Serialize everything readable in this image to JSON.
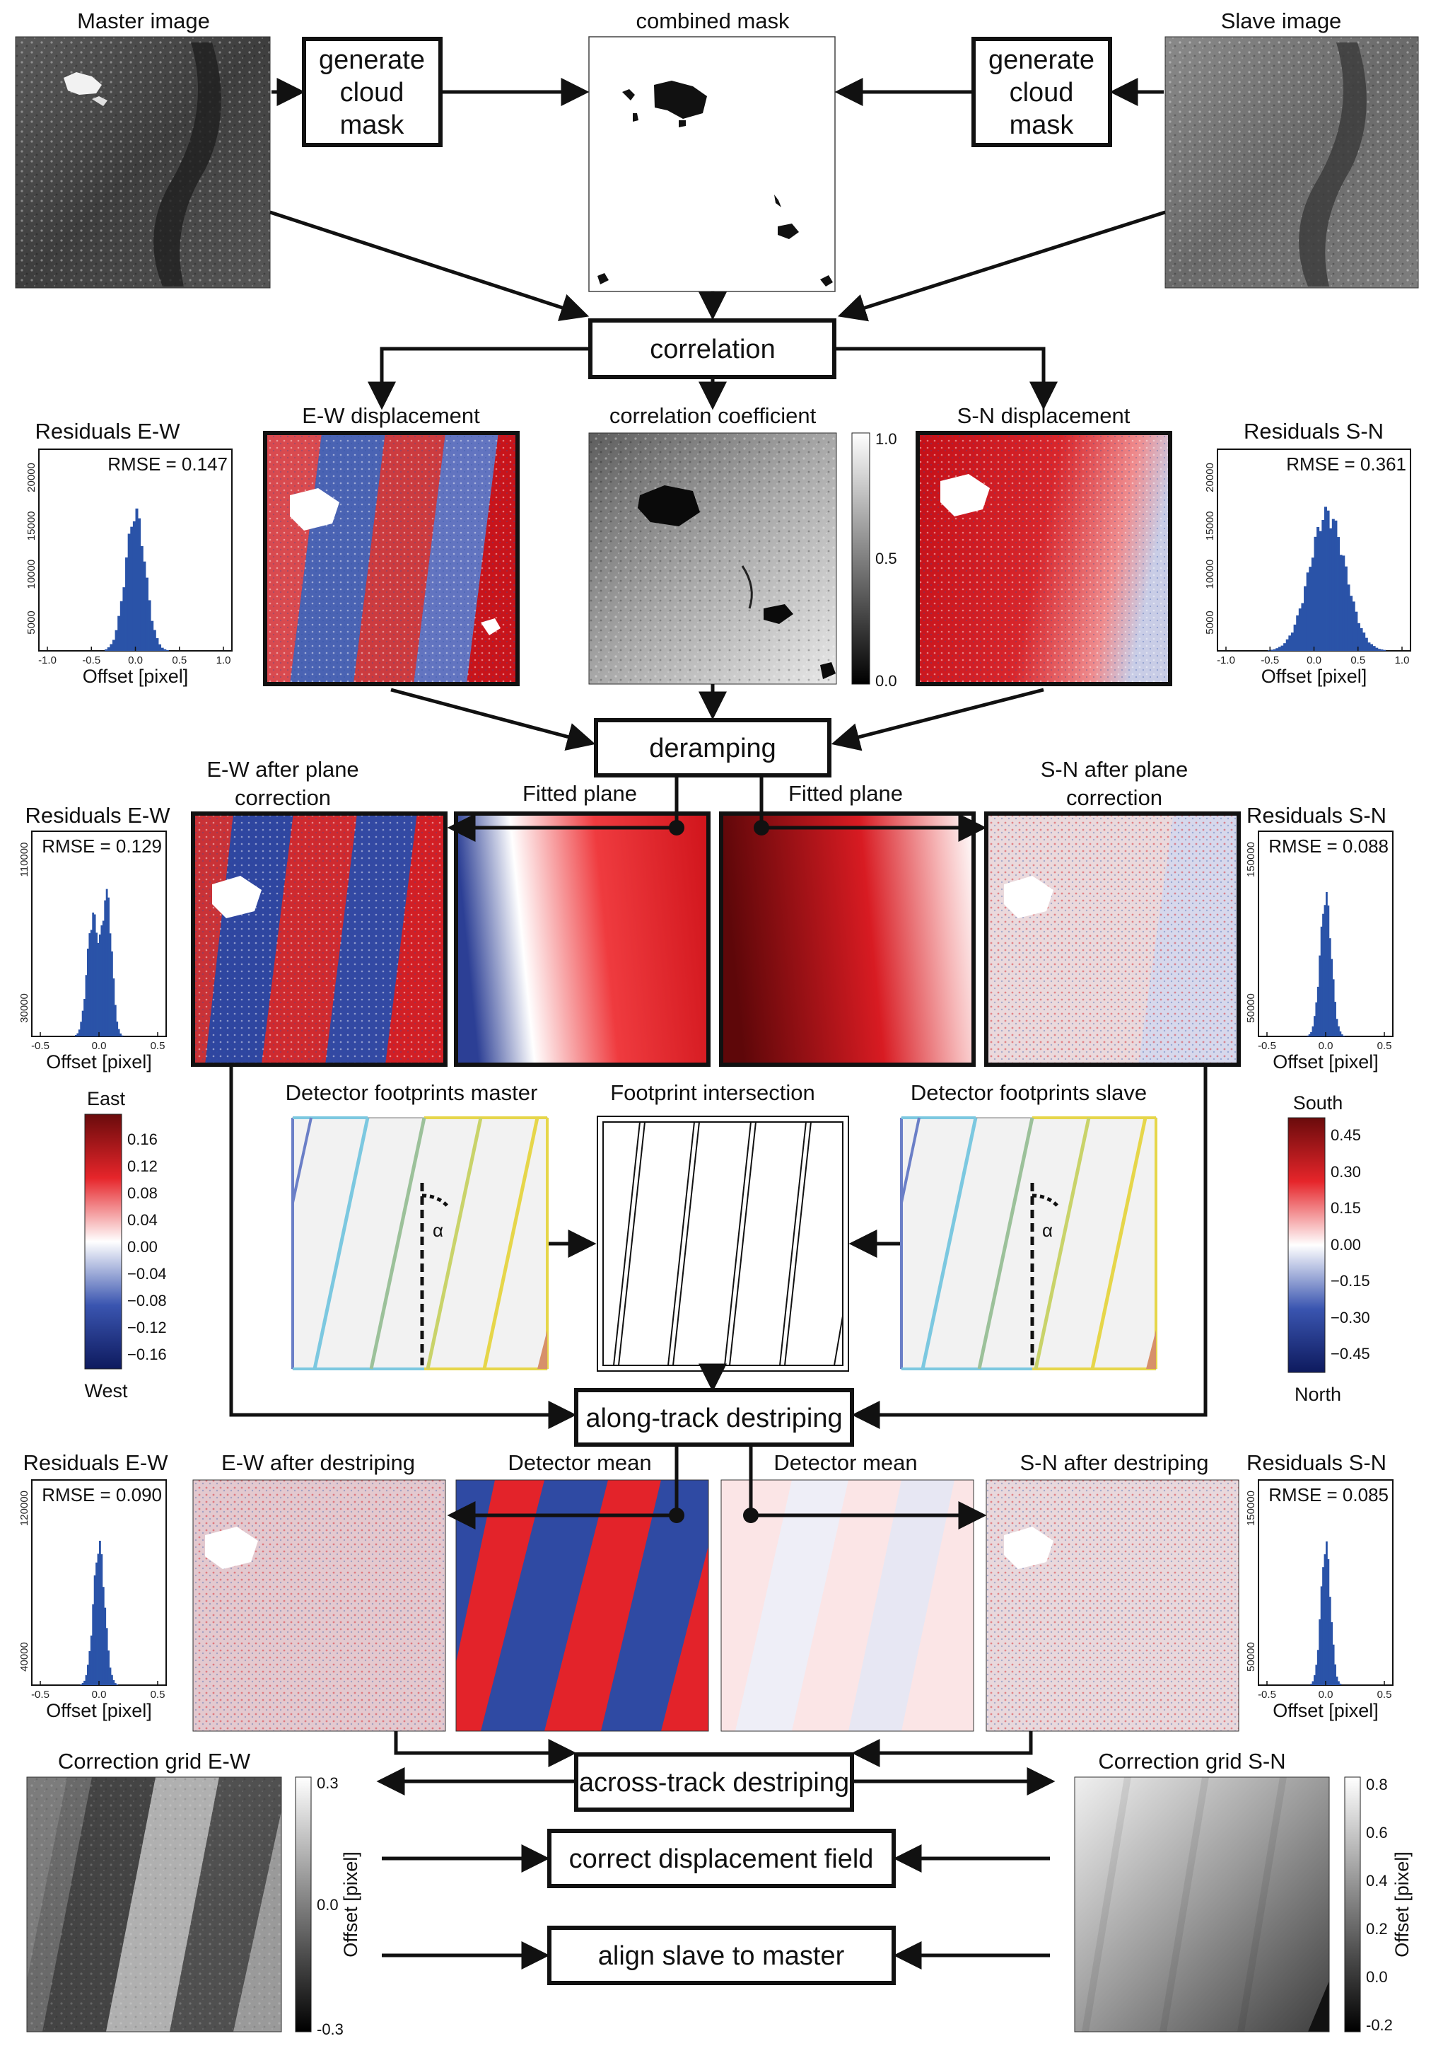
{
  "images": {
    "master": "Master image",
    "slave": "Slave image",
    "combined_mask": "combined mask",
    "ew_displacement": "E-W displacement",
    "correlation_coefficient": "correlation coefficient",
    "sn_displacement": "S-N displacement",
    "ew_after_plane_1": "E-W after plane",
    "ew_after_plane_2": "correction",
    "fitted_plane_ew": "Fitted plane",
    "fitted_plane_sn": "Fitted plane",
    "sn_after_plane_1": "S-N after plane",
    "sn_after_plane_2": "correction",
    "det_fp_master": "Detector footprints master",
    "fp_intersection": "Footprint intersection",
    "det_fp_slave": "Detector footprints slave",
    "ew_after_destriping": "E-W after destriping",
    "det_mean_ew": "Detector mean",
    "det_mean_sn": "Detector mean",
    "sn_after_destriping": "S-N after destriping",
    "corr_grid_ew": "Correction grid E-W",
    "corr_grid_sn": "Correction grid S-N",
    "alpha": "α"
  },
  "steps": {
    "cloud_left_1": "generate",
    "cloud_left_2": "cloud",
    "cloud_left_3": "mask",
    "cloud_right_1": "generate",
    "cloud_right_2": "cloud",
    "cloud_right_3": "mask",
    "correlation": "correlation",
    "deramping": "deramping",
    "along_track": "along-track destriping",
    "across_track": "across-track destriping",
    "correct_field": "correct displacement field",
    "align": "align slave to master"
  },
  "histograms": {
    "h1": {
      "title": "Residuals E-W",
      "rmse": "RMSE = 0.147",
      "xlabel": "Offset [pixel]",
      "xticks": [
        "-1.0",
        "-0.5",
        "0.0",
        "0.5",
        "1.0"
      ],
      "yticks": [
        "5000",
        "10000",
        "15000",
        "20000"
      ]
    },
    "h2": {
      "title": "Residuals S-N",
      "rmse": "RMSE = 0.361",
      "xlabel": "Offset [pixel]",
      "xticks": [
        "-1.0",
        "-0.5",
        "0.0",
        "0.5",
        "1.0"
      ],
      "yticks": [
        "5000",
        "10000",
        "15000",
        "20000"
      ]
    },
    "h3": {
      "title": "Residuals E-W",
      "rmse": "RMSE = 0.129",
      "xlabel": "Offset [pixel]",
      "xticks": [
        "-0.5",
        "0.0",
        "0.5"
      ],
      "yticks": [
        "30000",
        "110000"
      ]
    },
    "h4": {
      "title": "Residuals S-N",
      "rmse": "RMSE = 0.088",
      "xlabel": "Offset [pixel]",
      "xticks": [
        "-0.5",
        "0.0",
        "0.5"
      ],
      "yticks": [
        "50000",
        "150000"
      ]
    },
    "h5": {
      "title": "Residuals E-W",
      "rmse": "RMSE = 0.090",
      "xlabel": "Offset [pixel]",
      "xticks": [
        "-0.5",
        "0.0",
        "0.5"
      ],
      "yticks": [
        "40000",
        "120000"
      ]
    },
    "h6": {
      "title": "Residuals S-N",
      "rmse": "RMSE = 0.085",
      "xlabel": "Offset [pixel]",
      "xticks": [
        "-0.5",
        "0.0",
        "0.5"
      ],
      "yticks": [
        "50000",
        "150000"
      ]
    }
  },
  "colorbars": {
    "corrcoef": {
      "ticks": [
        "1.0",
        "0.5",
        "0.0"
      ]
    },
    "east_west": {
      "top": "East",
      "bottom": "West",
      "ticks": [
        "0.16",
        "0.12",
        "0.08",
        "0.04",
        "0.00",
        "−0.04",
        "−0.08",
        "−0.12",
        "−0.16"
      ]
    },
    "south_north": {
      "top": "South",
      "bottom": "North",
      "ticks": [
        "0.45",
        "0.30",
        "0.15",
        "0.00",
        "−0.15",
        "−0.30",
        "−0.45"
      ]
    },
    "grid_ew": {
      "ticks": [
        "0.3",
        "0.0",
        "-0.3"
      ],
      "label": "Offset [pixel]"
    },
    "grid_sn": {
      "ticks": [
        "0.8",
        "0.6",
        "0.4",
        "0.2",
        "0.0",
        "-0.2"
      ],
      "label": "Offset [pixel]"
    }
  },
  "colors": {
    "red": "#d7191c",
    "blue": "#2b4fa6",
    "dark_red": "#6b0a0a",
    "hist_blue": "#2a53a8"
  }
}
